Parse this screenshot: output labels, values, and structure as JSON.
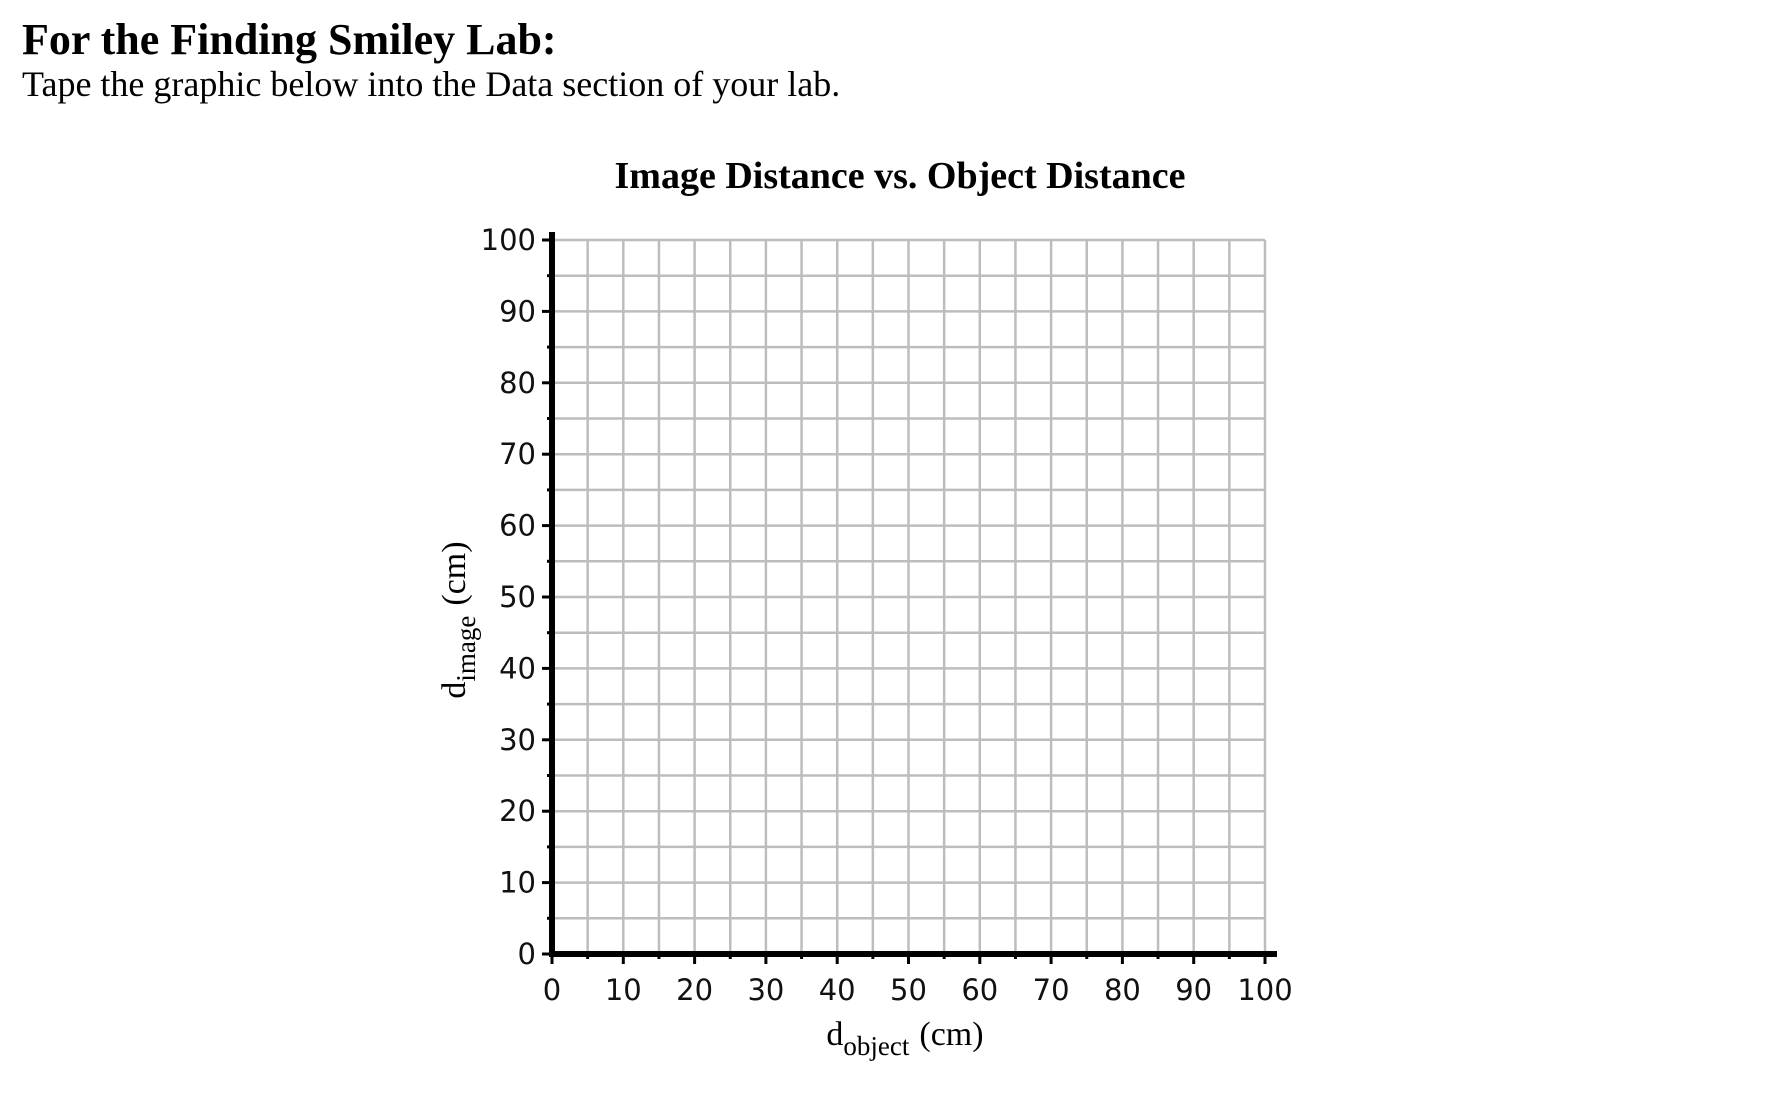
{
  "header": {
    "title": "For the Finding Smiley Lab:",
    "instructions": "Tape the graphic below into the Data section of your lab."
  },
  "chart_data": {
    "type": "scatter",
    "title": "Image Distance vs. Object Distance",
    "xlabel": {
      "main": "d",
      "sub": "object",
      "unit": "(cm)"
    },
    "ylabel": {
      "main": "d",
      "sub": "image",
      "unit": "(cm)"
    },
    "xlim": [
      0,
      100
    ],
    "ylim": [
      0,
      100
    ],
    "x_ticks": [
      0,
      10,
      20,
      30,
      40,
      50,
      60,
      70,
      80,
      90,
      100
    ],
    "y_ticks": [
      0,
      10,
      20,
      30,
      40,
      50,
      60,
      70,
      80,
      90,
      100
    ],
    "minor_grid_step": 5,
    "grid": true,
    "grid_color": "#bdbdbd",
    "axis_color": "#000000",
    "series": []
  }
}
